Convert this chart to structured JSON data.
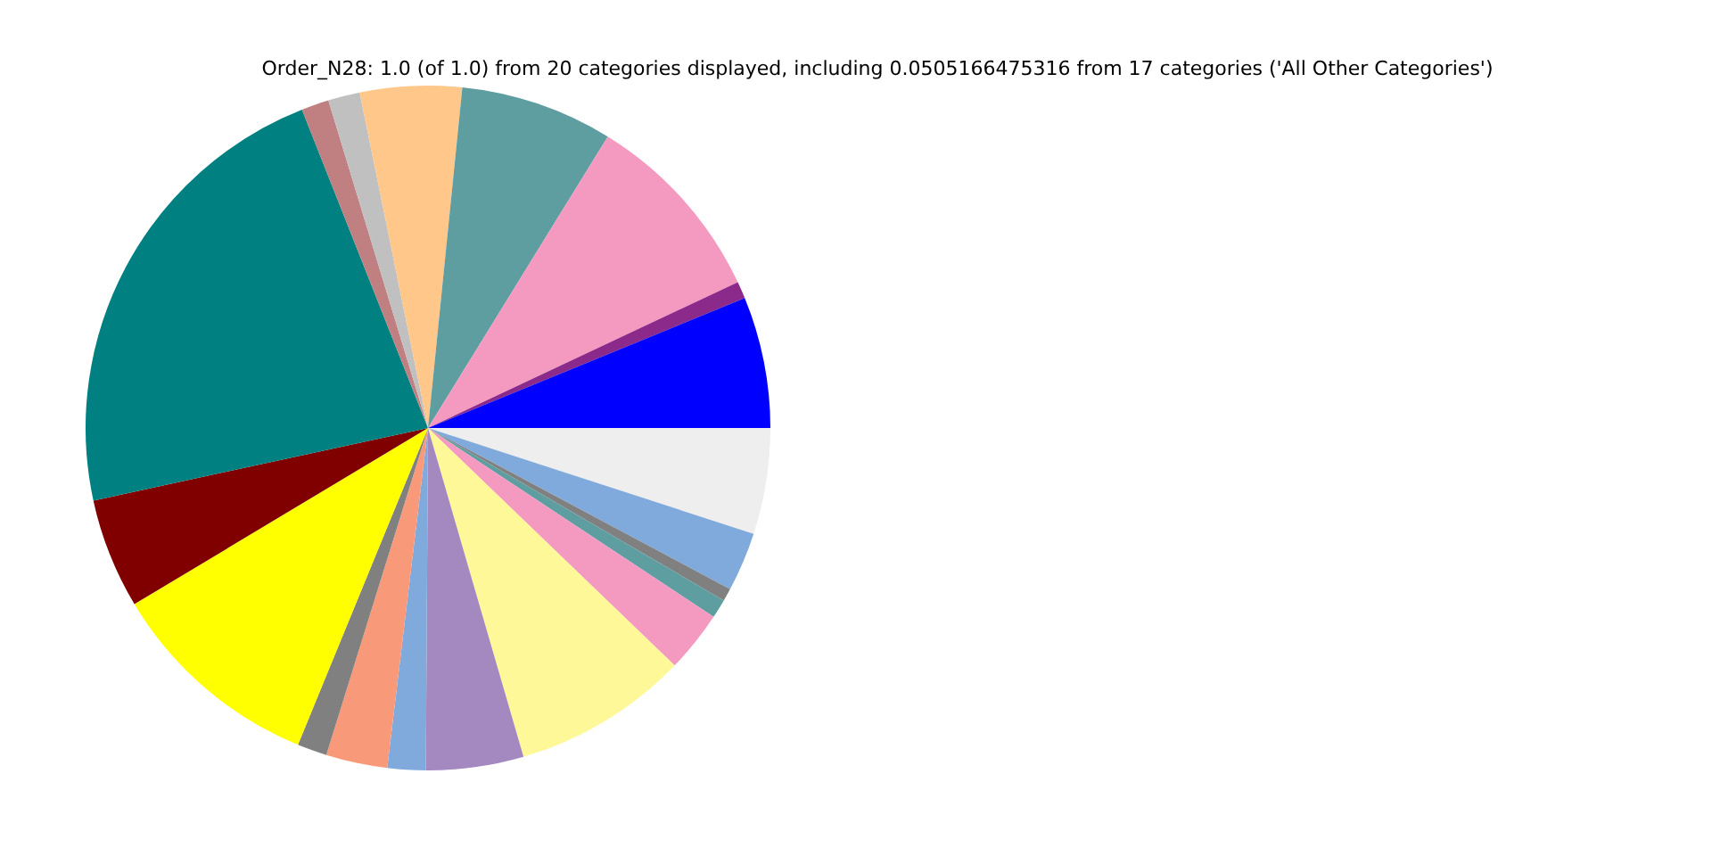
{
  "chart_data": {
    "type": "pie",
    "title": "Order_N28: 1.0 (of 1.0) from 20 categories displayed, including 0.0505166475316 from 17 categories ('All Other Categories')",
    "categories": [
      null,
      null,
      null,
      null,
      null,
      null,
      null,
      null,
      null,
      null,
      null,
      null,
      null,
      null,
      null,
      null,
      null,
      null,
      null,
      null
    ],
    "values": [
      5.0,
      2.8,
      0.6,
      0.9,
      2.9,
      8.3,
      4.6,
      1.8,
      2.9,
      1.4,
      10.2,
      5.2,
      22.4,
      1.3,
      1.5,
      4.8,
      7.2,
      9.2,
      0.8,
      6.2
    ],
    "colors": [
      "#eeeeee",
      "#7faadb",
      "#808080",
      "#5f9ea0",
      "#f49ac1",
      "#fff899",
      "#a389c0",
      "#7faadb",
      "#f89a7a",
      "#808080",
      "#ffff00",
      "#800000",
      "#008080",
      "#c08081",
      "#c0c0c0",
      "#ffc78a",
      "#5f9ea0",
      "#f49ac1",
      "#8b2a8b",
      "#0000ff"
    ],
    "legend": false
  }
}
